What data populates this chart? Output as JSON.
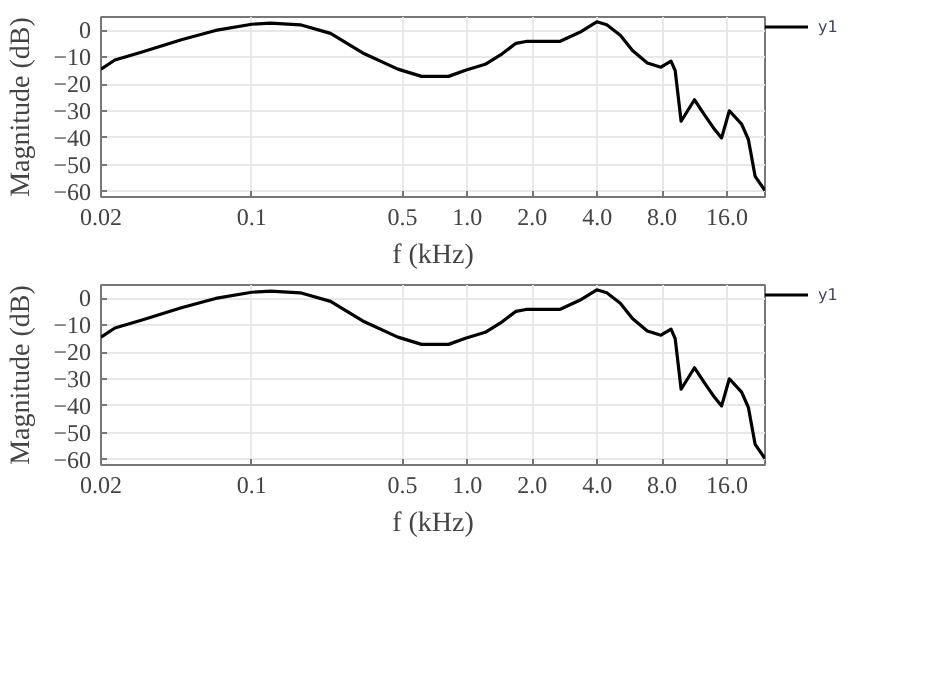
{
  "chart_data": [
    {
      "type": "line",
      "xlabel": "f (kHz)",
      "ylabel": "Magnitude (dB)",
      "log": "x",
      "grid": true,
      "legend": "right",
      "line_style": "solid",
      "xlim": [
        0.02,
        24
      ],
      "ylim": [
        -62,
        5
      ],
      "xticks": [
        {
          "value": 0.02,
          "label": "0.02"
        },
        {
          "value": 0.1,
          "label": "0.1"
        },
        {
          "value": 0.5,
          "label": "0.5"
        },
        {
          "value": 1,
          "label": "1.0"
        },
        {
          "value": 2,
          "label": "2.0"
        },
        {
          "value": 4,
          "label": "4.0"
        },
        {
          "value": 8,
          "label": "8.0"
        },
        {
          "value": 16,
          "label": "16.0"
        }
      ],
      "yticks": [
        0,
        -10,
        -20,
        -30,
        -40,
        -50,
        -60
      ],
      "series": [
        {
          "name": "y1",
          "color": "#000000",
          "x": [
            0.02,
            0.0232,
            0.031,
            0.0476,
            0.068,
            0.1,
            0.122,
            0.168,
            0.232,
            0.333,
            0.476,
            0.613,
            0.818,
            0.98,
            1.21,
            1.45,
            1.68,
            1.87,
            2.68,
            3.32,
            3.98,
            4.43,
            5.12,
            5.83,
            6.83,
            7.9,
            8.8,
            9.2,
            9.8,
            11.3,
            12.6,
            14.0,
            15.1,
            16.4,
            18.7,
            20.1,
            21.6,
            24
          ],
          "values": [
            -14.4,
            -11,
            -8,
            -3.4,
            0,
            2.3,
            2.7,
            2.1,
            -1.1,
            -8.7,
            -14.4,
            -17.1,
            -17.1,
            -14.8,
            -12.6,
            -8.7,
            -4.8,
            -4.1,
            -4.1,
            -0.7,
            3.2,
            2.1,
            -1.8,
            -7.5,
            -12.1,
            -13.7,
            -11.4,
            -15,
            -33.8,
            -25.8,
            -31.5,
            -36.8,
            -40,
            -29.9,
            -34.9,
            -40.6,
            -54.3,
            -59.6
          ]
        }
      ]
    },
    {
      "type": "line",
      "xlabel": "f (kHz)",
      "ylabel": "Magnitude (dB)",
      "log": "x",
      "grid": true,
      "legend": "right",
      "line_style": "solid",
      "xlim": [
        0.02,
        24
      ],
      "ylim": [
        -62,
        5
      ],
      "xticks": [
        {
          "value": 0.02,
          "label": "0.02"
        },
        {
          "value": 0.1,
          "label": "0.1"
        },
        {
          "value": 0.5,
          "label": "0.5"
        },
        {
          "value": 1,
          "label": "1.0"
        },
        {
          "value": 2,
          "label": "2.0"
        },
        {
          "value": 4,
          "label": "4.0"
        },
        {
          "value": 8,
          "label": "8.0"
        },
        {
          "value": 16,
          "label": "16.0"
        }
      ],
      "yticks": [
        0,
        -10,
        -20,
        -30,
        -40,
        -50,
        -60
      ],
      "series": [
        {
          "name": "y1",
          "color": "#000000",
          "x": [
            0.02,
            0.0232,
            0.031,
            0.0476,
            0.068,
            0.1,
            0.122,
            0.168,
            0.232,
            0.333,
            0.476,
            0.613,
            0.818,
            0.98,
            1.21,
            1.45,
            1.68,
            1.87,
            2.68,
            3.32,
            3.98,
            4.43,
            5.12,
            5.83,
            6.83,
            7.9,
            8.8,
            9.2,
            9.8,
            11.3,
            12.6,
            14.0,
            15.1,
            16.4,
            18.7,
            20.1,
            21.6,
            24
          ],
          "values": [
            -14.4,
            -11,
            -8,
            -3.4,
            0,
            2.3,
            2.7,
            2.1,
            -1.1,
            -8.7,
            -14.4,
            -17.1,
            -17.1,
            -14.8,
            -12.6,
            -8.7,
            -4.8,
            -4.1,
            -4.1,
            -0.7,
            3.2,
            2.1,
            -1.8,
            -7.5,
            -12.1,
            -13.7,
            -11.4,
            -15,
            -33.8,
            -25.8,
            -31.5,
            -36.8,
            -40,
            -29.9,
            -34.9,
            -40.6,
            -54.3,
            -59.6
          ]
        }
      ]
    }
  ]
}
